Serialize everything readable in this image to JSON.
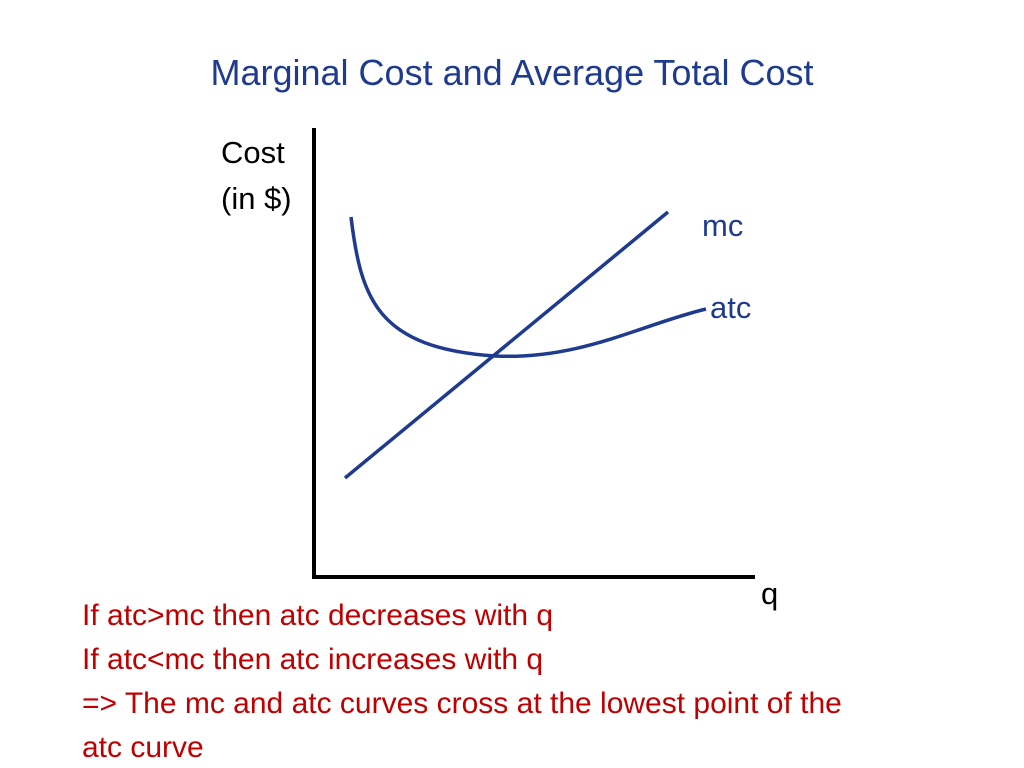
{
  "title": "Marginal Cost and Average Total Cost",
  "diagram": {
    "y_axis_label_line1": "Cost",
    "y_axis_label_line2": "(in $)",
    "x_axis_label": "q",
    "curves": [
      {
        "name": "mc",
        "label": "mc",
        "shape": "upward-sloping line",
        "color": "#1f3b8f"
      },
      {
        "name": "atc",
        "label": "atc",
        "shape": "U-shaped curve",
        "color": "#1f3b8f"
      }
    ],
    "axis_color": "#000000"
  },
  "notes": [
    "If atc>mc then atc decreases with q",
    "If atc<mc then atc increases with q",
    "=> The mc and atc curves cross at the lowest point of the",
    "atc curve"
  ],
  "colors": {
    "title": "#1f3b8f",
    "notes": "#c00000"
  }
}
